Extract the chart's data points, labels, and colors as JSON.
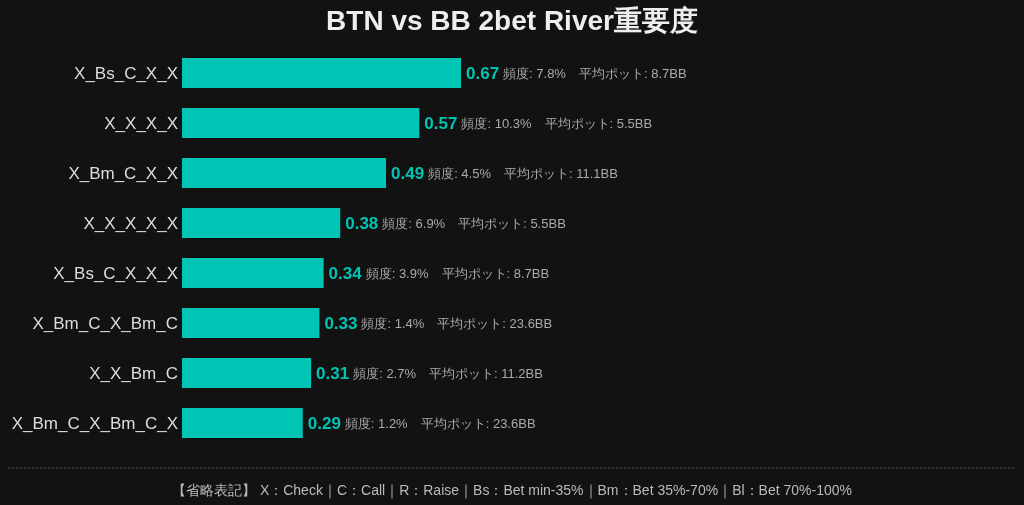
{
  "chart_data": {
    "type": "bar",
    "orientation": "horizontal",
    "title": "BTN vs BB 2bet River重要度",
    "categories": [
      "X_Bs_C_X_X",
      "X_X_X_X",
      "X_Bm_C_X_X",
      "X_X_X_X_X",
      "X_Bs_C_X_X_X",
      "X_Bm_C_X_Bm_C",
      "X_X_Bm_C",
      "X_Bm_C_X_Bm_C_X"
    ],
    "values": [
      0.67,
      0.57,
      0.49,
      0.38,
      0.34,
      0.33,
      0.31,
      0.29
    ],
    "color": "#00c4b4",
    "data_labels": true,
    "annotations": [
      "頻度: 7.8%　平均ポット: 8.7BB",
      "頻度: 10.3%　平均ポット: 5.5BB",
      "頻度: 4.5%　平均ポット: 11.1BB",
      "頻度: 6.9%　平均ポット: 5.5BB",
      "頻度: 3.9%　平均ポット: 8.7BB",
      "頻度: 1.4%　平均ポット: 23.6BB",
      "頻度: 2.7%　平均ポット: 11.2BB",
      "頻度: 1.2%　平均ポット: 23.6BB",
      "【省略表記】 X：Check｜C：Call｜R：Raise｜Bs：Bet min-35%｜Bm：Bet 35%-70%｜Bl：Bet 70%-100%"
    ]
  }
}
